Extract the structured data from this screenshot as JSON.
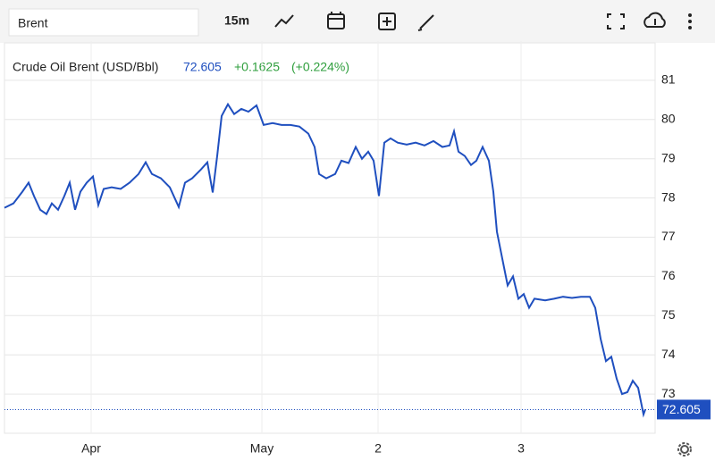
{
  "toolbar": {
    "search": "Brent",
    "interval": "15m"
  },
  "chart_data": {
    "type": "line",
    "title": "Crude Oil Brent (USD/Bbl)",
    "last": 72.605,
    "change_label": "+0.1625",
    "change_pct_label": "(+0.224%)",
    "color": "#1f4fbf",
    "grid": true,
    "x": [
      0,
      10,
      20,
      27,
      33,
      40,
      47,
      53,
      60,
      67,
      73,
      79,
      85,
      92,
      99,
      105,
      111,
      120,
      130,
      140,
      150,
      158,
      165,
      175,
      185,
      195,
      202,
      210,
      220,
      227,
      233,
      238,
      243,
      250,
      257,
      265,
      273,
      282,
      290,
      300,
      310,
      320,
      330,
      340,
      347,
      352,
      360,
      370,
      377,
      385,
      393,
      400,
      407,
      413,
      419,
      425,
      432,
      440,
      450,
      460,
      470,
      480,
      490,
      498,
      503,
      508,
      515,
      522,
      528,
      535,
      542,
      547,
      551,
      557,
      563,
      569,
      575,
      581,
      587,
      593,
      605,
      615,
      625,
      635,
      645,
      655,
      661,
      667,
      673,
      679,
      685,
      691,
      697,
      703,
      709,
      715,
      717
    ],
    "values": [
      77.75,
      77.86,
      78.16,
      78.39,
      78.05,
      77.7,
      77.59,
      77.86,
      77.7,
      78.05,
      78.39,
      77.7,
      78.16,
      78.39,
      78.55,
      77.82,
      78.23,
      78.27,
      78.23,
      78.39,
      78.61,
      78.91,
      78.61,
      78.5,
      78.27,
      77.77,
      78.39,
      78.5,
      78.73,
      78.91,
      78.14,
      79.07,
      80.09,
      80.39,
      80.14,
      80.27,
      80.2,
      80.36,
      79.86,
      79.91,
      79.86,
      79.86,
      79.82,
      79.64,
      79.3,
      78.61,
      78.5,
      78.61,
      78.95,
      78.89,
      79.3,
      79.0,
      79.18,
      78.95,
      78.05,
      79.41,
      79.52,
      79.41,
      79.36,
      79.41,
      79.34,
      79.45,
      79.3,
      79.34,
      79.7,
      79.18,
      79.07,
      78.84,
      78.95,
      79.3,
      78.95,
      78.16,
      77.14,
      76.45,
      75.77,
      76.0,
      75.43,
      75.55,
      75.2,
      75.43,
      75.39,
      75.43,
      75.48,
      75.45,
      75.48,
      75.48,
      75.2,
      74.41,
      73.84,
      73.95,
      73.39,
      73.0,
      73.05,
      73.34,
      73.16,
      72.48,
      72.605
    ],
    "xlim": [
      0,
      728
    ],
    "xticks": [
      {
        "value": 97,
        "label": "Apr"
      },
      {
        "value": 288,
        "label": "May"
      },
      {
        "value": 418,
        "label": "2"
      },
      {
        "value": 578,
        "label": "3"
      }
    ],
    "ylim": [
      72,
      82
    ],
    "yticks": [
      73,
      74,
      75,
      76,
      77,
      78,
      79,
      80,
      81
    ]
  }
}
